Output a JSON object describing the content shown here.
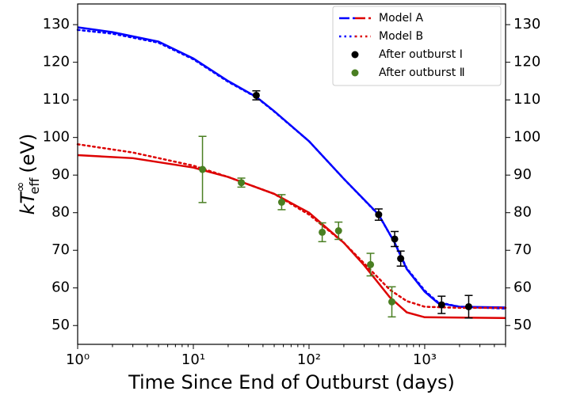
{
  "chart_data": {
    "type": "line",
    "xlabel": "Time Since End of Outburst (days)",
    "ylabel": {
      "main": "kT",
      "sup": "∞",
      "sub": "eff",
      "unit": "(eV)"
    },
    "xscale": "log",
    "xlim": [
      1,
      5000
    ],
    "xticks": [
      {
        "value": 1,
        "label": "10⁰"
      },
      {
        "value": 10,
        "label": "10¹"
      },
      {
        "value": 100,
        "label": "10²"
      },
      {
        "value": 1000,
        "label": "10³"
      }
    ],
    "xminorticks": [
      2,
      3,
      4,
      5,
      6,
      7,
      8,
      9,
      20,
      30,
      40,
      50,
      60,
      70,
      80,
      90,
      200,
      300,
      400,
      500,
      600,
      700,
      800,
      900,
      2000,
      3000,
      4000,
      5000
    ],
    "ylim": [
      45,
      135.5
    ],
    "yticks": [
      50,
      60,
      70,
      80,
      90,
      100,
      110,
      120,
      130
    ],
    "right_axis": true,
    "legend": "upper right",
    "series": [
      {
        "name": "Model A",
        "style": "solid",
        "lines": [
          {
            "color": "#0000ff",
            "x": [
              1,
              2,
              5,
              10,
              20,
              35,
              50,
              100,
              200,
              400,
              550,
              700,
              1000,
              1300,
              2000,
              5000
            ],
            "y": [
              129.3,
              128,
              125.5,
              121,
              115,
              110.8,
              107,
              99,
              89,
              79.5,
              72,
              65,
              59,
              56,
              55,
              54.8
            ]
          },
          {
            "color": "#dd0000",
            "x": [
              1,
              3,
              10,
              20,
              30,
              50,
              100,
              200,
              300,
              500,
              700,
              1000,
              5000
            ],
            "y": [
              95.3,
              94.5,
              92,
              89.5,
              87.5,
              85,
              80,
              72,
              66,
              57.5,
              53.5,
              52.2,
              52
            ]
          }
        ]
      },
      {
        "name": "Model B",
        "style": "dotted",
        "lines": [
          {
            "color": "#0000ff",
            "x": [
              1,
              2,
              5,
              10,
              20,
              35,
              50,
              100,
              200,
              400,
              550,
              700,
              1000,
              1300,
              2000,
              5000
            ],
            "y": [
              128.6,
              127.6,
              125.2,
              120.8,
              114.8,
              110.7,
              106.9,
              99,
              89,
              79.4,
              72,
              65.2,
              59.3,
              56.2,
              55,
              54.5
            ]
          },
          {
            "color": "#dd0000",
            "x": [
              1,
              3,
              10,
              20,
              50,
              100,
              200,
              300,
              500,
              700,
              1000,
              2000,
              5000
            ],
            "y": [
              98.2,
              96,
              92.5,
              89.5,
              85,
              79.5,
              72,
              66.5,
              59.5,
              56.5,
              55,
              54.7,
              54.7
            ]
          }
        ]
      },
      {
        "name": "After outburst Ⅰ",
        "style": "points",
        "color": "#000000",
        "x": [
          35,
          400,
          550,
          620,
          1400,
          2400
        ],
        "y": [
          111.2,
          79.5,
          73,
          67.8,
          55.5,
          55
        ],
        "err": [
          1.2,
          1.5,
          2,
          2,
          2.3,
          3
        ]
      },
      {
        "name": "After outburst Ⅱ",
        "style": "points",
        "color": "#4a7f22",
        "x": [
          12,
          26,
          58,
          130,
          180,
          340,
          520
        ],
        "y": [
          91.5,
          88,
          82.8,
          74.8,
          75.2,
          66.2,
          56.3
        ],
        "err": [
          8.8,
          1.2,
          2,
          2.5,
          2.3,
          3,
          4
        ]
      }
    ]
  }
}
